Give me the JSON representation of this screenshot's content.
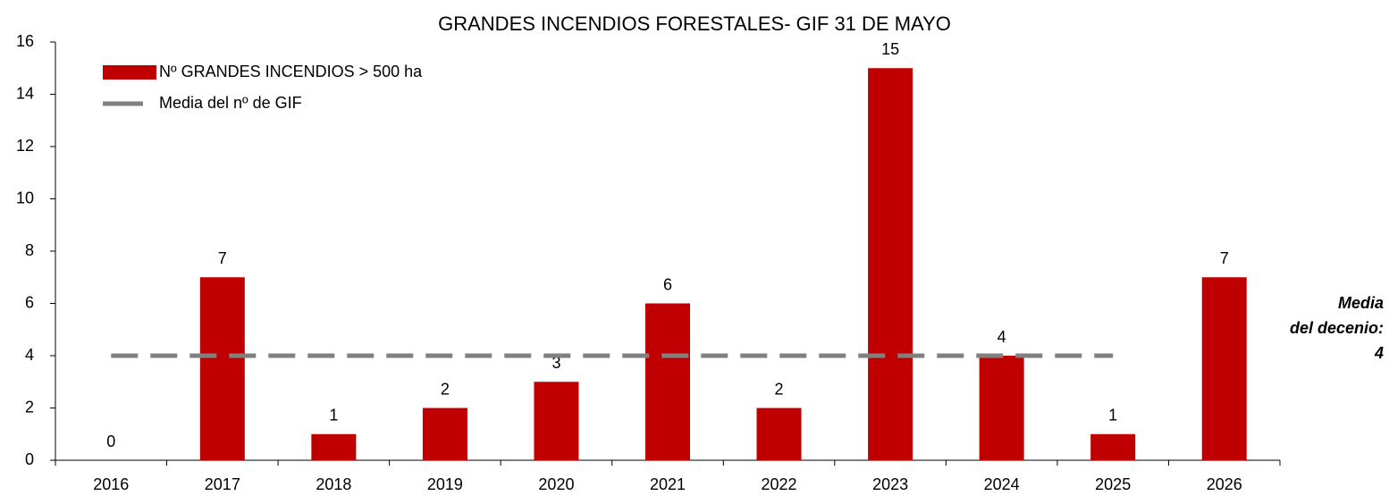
{
  "chart_data": {
    "type": "bar",
    "title": "GRANDES INCENDIOS FORESTALES- GIF  31 DE MAYO",
    "categories": [
      "2016",
      "2017",
      "2018",
      "2019",
      "2020",
      "2021",
      "2022",
      "2023",
      "2024",
      "2025",
      "2026"
    ],
    "series": [
      {
        "name": "Nº GRANDES INCENDIOS > 500 ha",
        "color": "#c00000",
        "type": "bar",
        "values": [
          0,
          7,
          1,
          2,
          3,
          6,
          2,
          15,
          4,
          1,
          7
        ]
      },
      {
        "name": "Media del nº de GIF",
        "color": "#808080",
        "type": "dashed-line",
        "values": [
          4,
          4,
          4,
          4,
          4,
          4,
          4,
          4,
          4,
          4,
          null
        ]
      }
    ],
    "annotation": [
      "Media",
      "del decenio:",
      "4"
    ],
    "ylim": [
      0,
      16
    ],
    "yticks": [
      0,
      2,
      4,
      6,
      8,
      10,
      12,
      14,
      16
    ],
    "grid": false,
    "legend": "upper left"
  }
}
